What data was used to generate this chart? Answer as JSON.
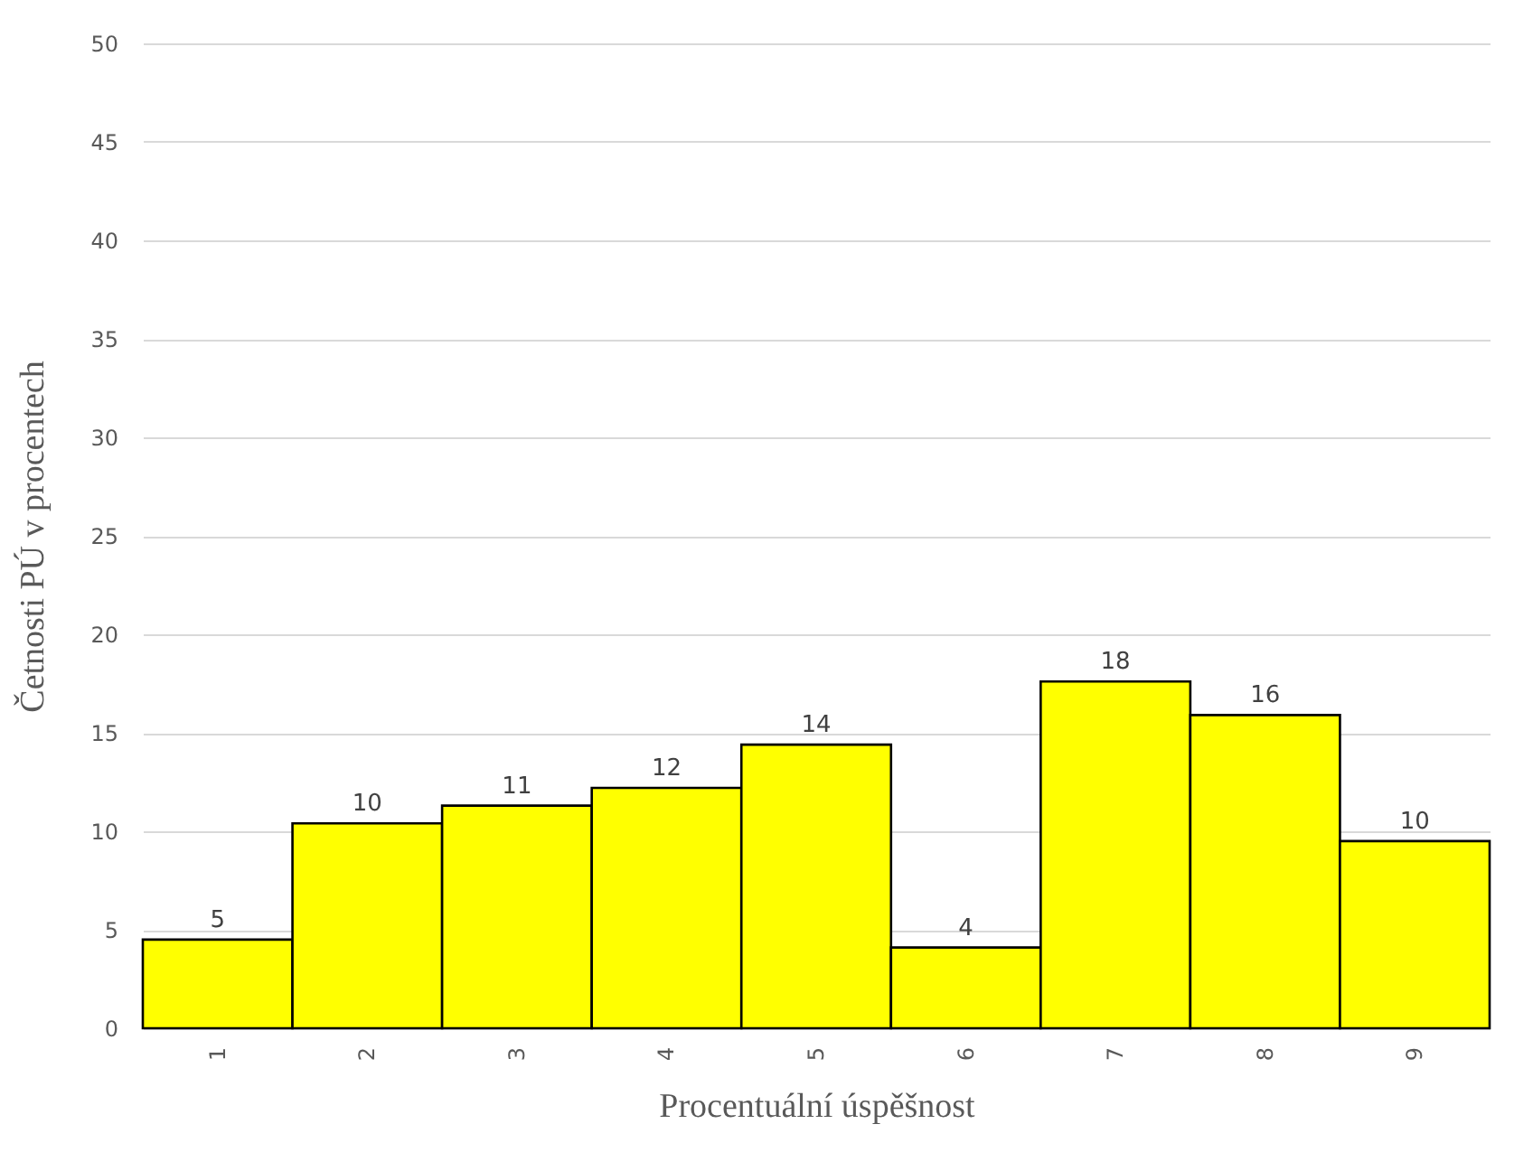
{
  "chart_data": {
    "type": "bar",
    "xlabel": "Procentuální úspěšnost",
    "ylabel": "Četnosti PÚ v procentech",
    "categories": [
      "1",
      "2",
      "3",
      "4",
      "5",
      "6",
      "7",
      "8",
      "9"
    ],
    "values": [
      4.5,
      10.4,
      11.3,
      12.2,
      14.4,
      4.1,
      17.6,
      15.9,
      9.5
    ],
    "value_labels": [
      "5",
      "10",
      "11",
      "12",
      "14",
      "4",
      "18",
      "16",
      "10"
    ],
    "color": "#ffff00",
    "ylim": [
      0,
      50
    ],
    "yticks": [
      0,
      5,
      10,
      15,
      20,
      25,
      30,
      35,
      40,
      45,
      50
    ],
    "grid": "y"
  }
}
